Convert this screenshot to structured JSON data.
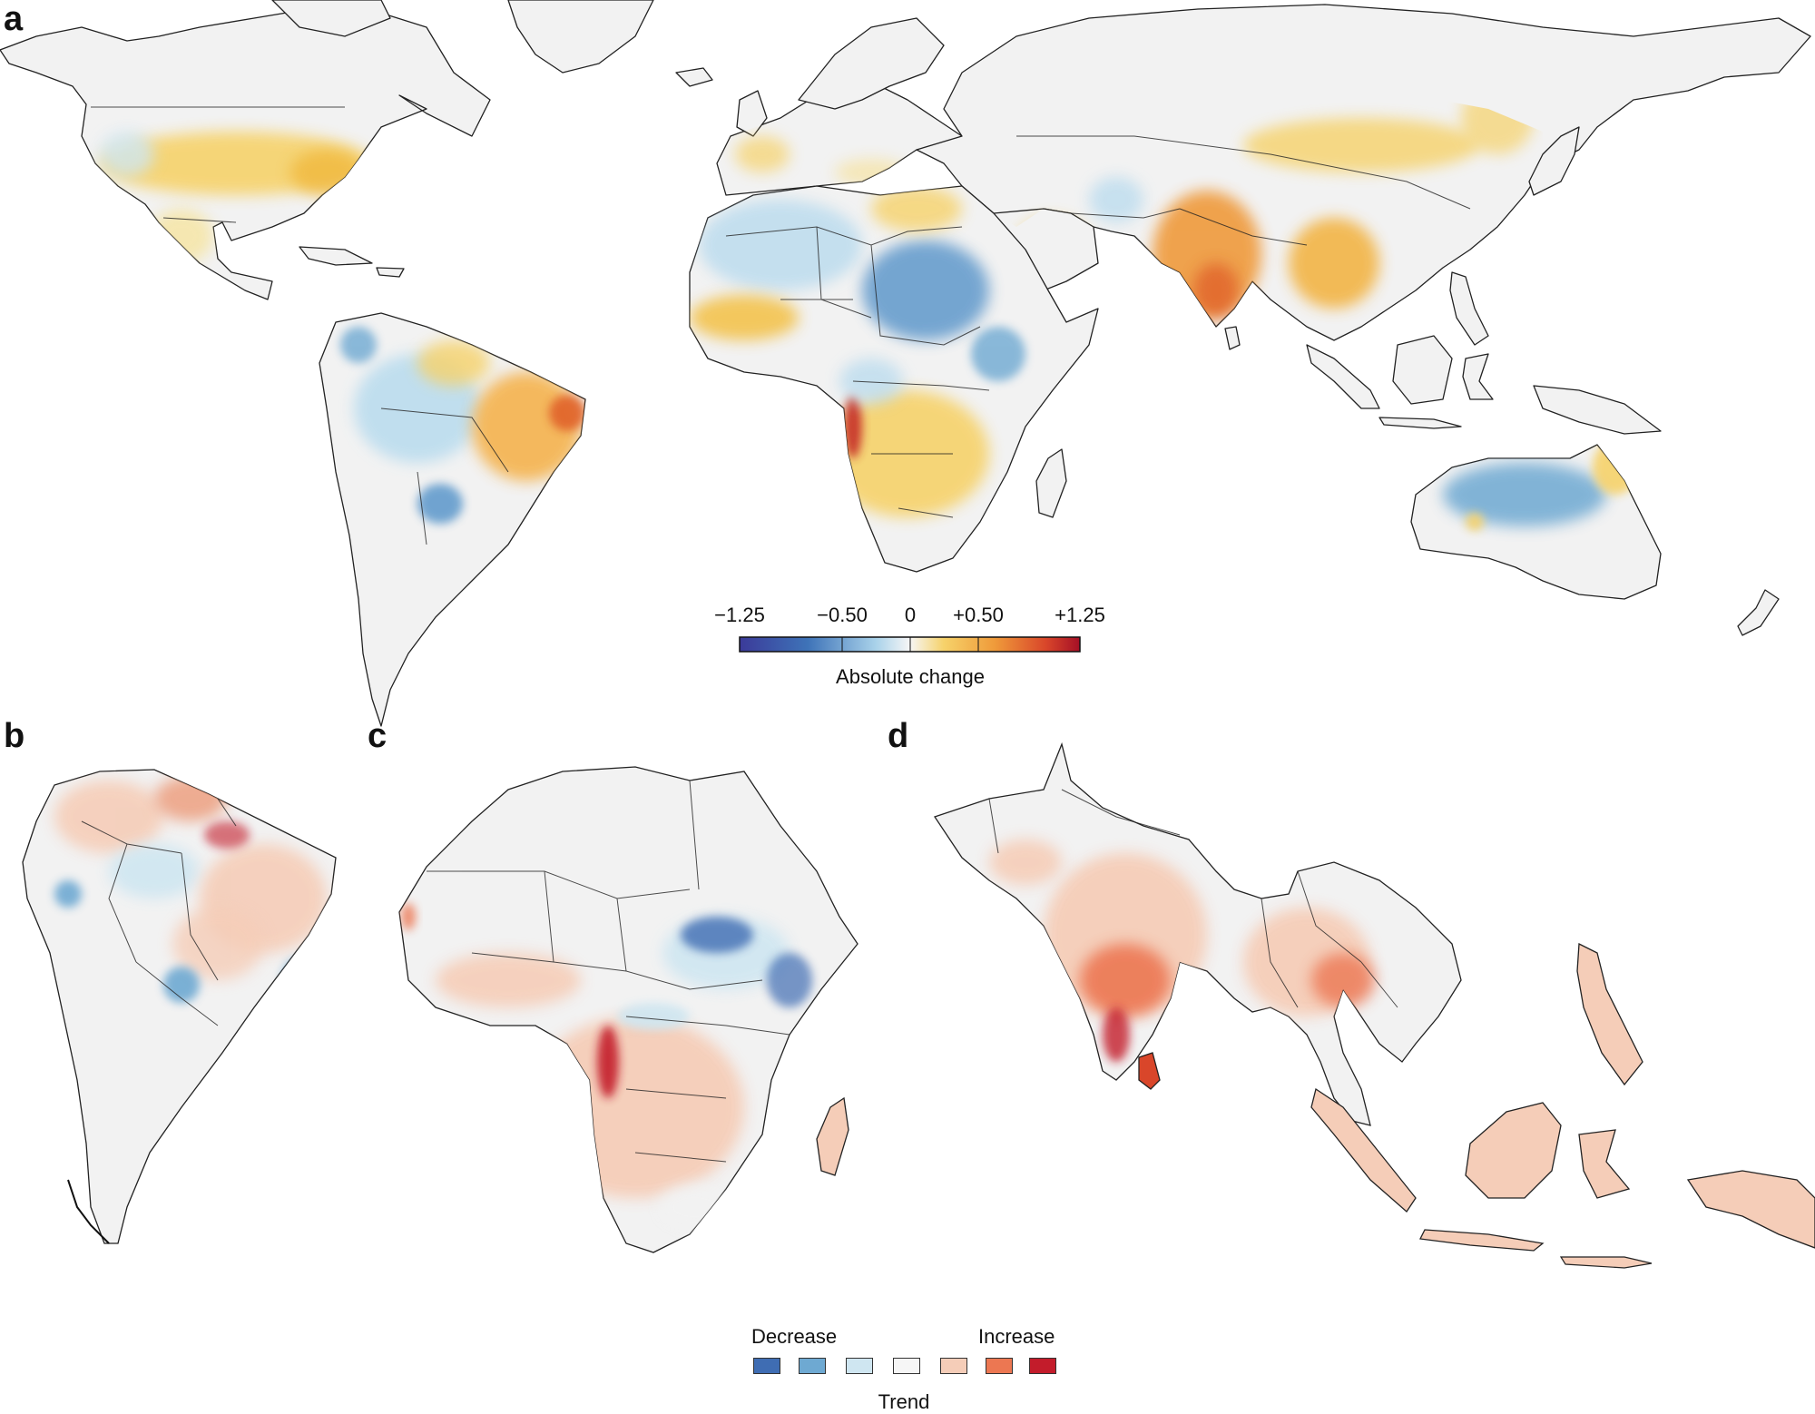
{
  "panels": {
    "a": {
      "label": "a"
    },
    "b": {
      "label": "b"
    },
    "c": {
      "label": "c"
    },
    "d": {
      "label": "d"
    }
  },
  "colorbar": {
    "ticks": [
      "−1.25",
      "−0.50",
      "0",
      "+0.50",
      "+1.25"
    ],
    "tick_values": [
      -1.25,
      -0.5,
      0,
      0.5,
      1.25
    ],
    "title": "Absolute change",
    "colors": [
      "#3b3a99",
      "#3e73b8",
      "#7fb5dc",
      "#f6f6f6",
      "#f6d26a",
      "#ef9a3a",
      "#d9462a",
      "#a50f26"
    ]
  },
  "trend_legend": {
    "decrease_label": "Decrease",
    "increase_label": "Increase",
    "title": "Trend",
    "colors": [
      "#3f6db3",
      "#6ea9d2",
      "#cfe6f1",
      "#f6f6f6",
      "#f5cdb8",
      "#ec7752",
      "#c31c2b"
    ]
  },
  "map_colors": {
    "land": "#f2f2f2",
    "border": "#222222",
    "ocean": "#ffffff"
  }
}
